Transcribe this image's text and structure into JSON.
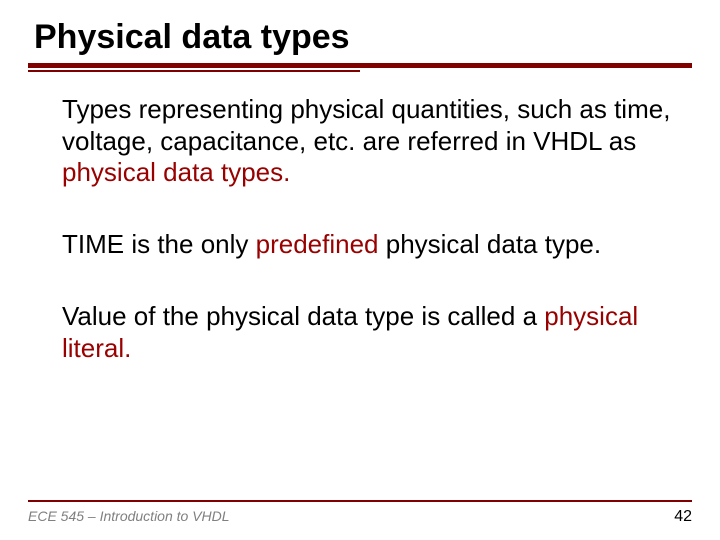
{
  "title": "Physical data types",
  "colors": {
    "accent": "#800000",
    "highlight": "#990000",
    "text": "#000000",
    "footer_text": "#808080",
    "background": "#ffffff"
  },
  "typography": {
    "title_fontsize": 34,
    "body_fontsize": 26,
    "footer_left_fontsize": 14,
    "footer_right_fontsize": 16,
    "font_family": "Arial"
  },
  "paragraphs": [
    {
      "parts": [
        {
          "text": "Types representing physical quantities, such as time, voltage, capacitance, etc. are referred in VHDL as ",
          "highlight": false
        },
        {
          "text": "physical data types.",
          "highlight": true
        }
      ]
    },
    {
      "parts": [
        {
          "text": "TIME is the only ",
          "highlight": false
        },
        {
          "text": "predefined",
          "highlight": true
        },
        {
          "text": " physical data type.",
          "highlight": false
        }
      ]
    },
    {
      "parts": [
        {
          "text": "Value of the physical data type is called a ",
          "highlight": false
        },
        {
          "text": "physical literal.",
          "highlight": true
        }
      ]
    }
  ],
  "footer": {
    "course": "ECE 545 – Introduction to VHDL",
    "page": "42"
  }
}
